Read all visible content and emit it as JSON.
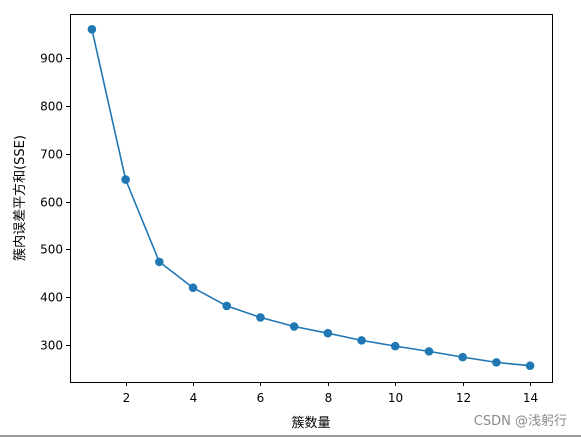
{
  "chart_data": {
    "type": "line",
    "title": "",
    "xlabel": "簇数量",
    "ylabel": "簇内误差平方和(SSE)",
    "x": [
      1,
      2,
      3,
      4,
      5,
      6,
      7,
      8,
      9,
      10,
      11,
      12,
      13,
      14
    ],
    "series": [
      {
        "values": [
          960,
          646,
          474,
          420,
          382,
          358,
          339,
          325,
          310,
          298,
          287,
          275,
          264,
          257
        ],
        "color": "#1f77b4",
        "marker": "circle"
      }
    ],
    "xlim": [
      0.35,
      14.65
    ],
    "ylim": [
      223,
      992
    ],
    "xticks": [
      2,
      4,
      6,
      8,
      10,
      12,
      14
    ],
    "yticks": [
      300,
      400,
      500,
      600,
      700,
      800,
      900
    ],
    "grid": false
  },
  "watermark": "CSDN @浅躬行"
}
